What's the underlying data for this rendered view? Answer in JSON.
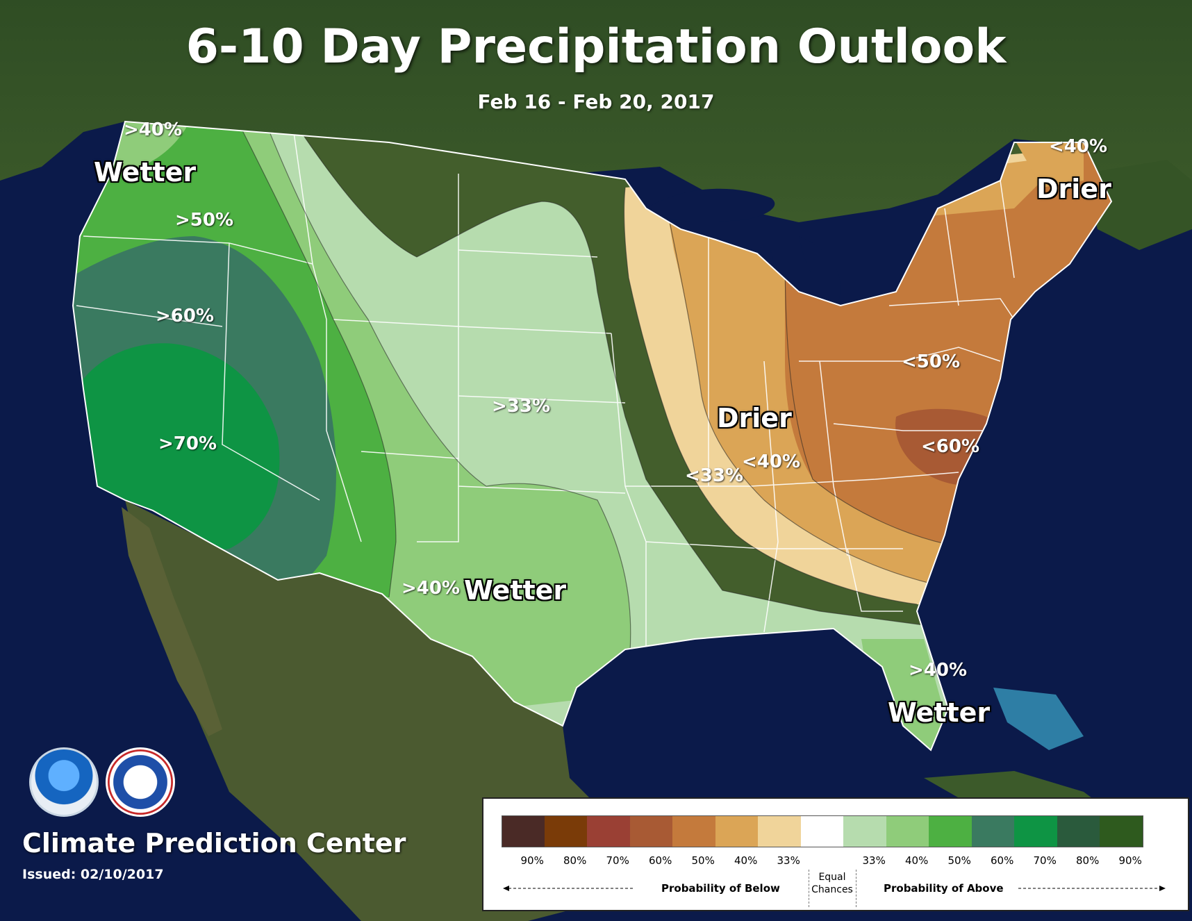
{
  "title": "6-10 Day Precipitation Outlook",
  "subtitle": "Feb 16 - Feb 20, 2017",
  "labels": {
    "wetter_nw": "Wetter",
    "wetter_south": "Wetter",
    "wetter_fl": "Wetter",
    "drier_ne": "Drier",
    "drier_ov": "Drier",
    "p40_wa": ">40%",
    "p50": ">50%",
    "p60": ">60%",
    "p70": ">70%",
    "p33_plains": ">33%",
    "p40_sw": ">40%",
    "p40_fl": ">40%",
    "m40_me": "<40%",
    "m50": "<50%",
    "m60": "<60%",
    "m40_ov": "<40%",
    "m33_ms": "<33%"
  },
  "branding": {
    "org": "Climate Prediction Center",
    "issued": "Issued: 02/10/2017"
  },
  "legend": {
    "swatches": [
      {
        "color": "#4a2a26",
        "label": "90%"
      },
      {
        "color": "#7a3b08",
        "label": "80%"
      },
      {
        "color": "#9a4034",
        "label": "70%"
      },
      {
        "color": "#a85a34",
        "label": "60%"
      },
      {
        "color": "#c47a3c",
        "label": "50%"
      },
      {
        "color": "#dba556",
        "label": "40%"
      },
      {
        "color": "#f0d49a",
        "label": "33%"
      },
      {
        "color": "#ffffff",
        "label": ""
      },
      {
        "color": "#b6dcae",
        "label": "33%"
      },
      {
        "color": "#8fcc7a",
        "label": "40%"
      },
      {
        "color": "#4db042",
        "label": "50%"
      },
      {
        "color": "#3a7a60",
        "label": "60%"
      },
      {
        "color": "#0e9444",
        "label": "70%"
      },
      {
        "color": "#2a5a3c",
        "label": "80%"
      },
      {
        "color": "#2e5a1e",
        "label": "90%"
      }
    ],
    "below_text": "Probability of Below",
    "equal_line1": "Equal",
    "equal_line2": "Chances",
    "above_text": "Probability of Above"
  }
}
